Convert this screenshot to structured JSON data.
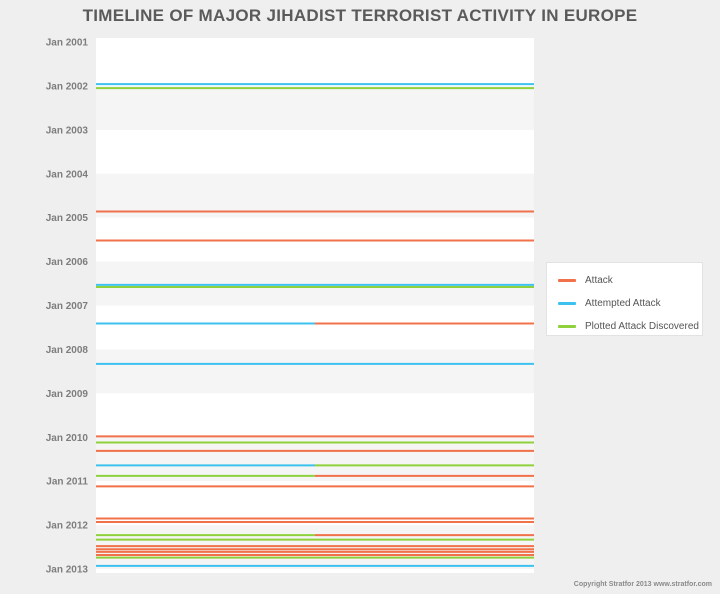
{
  "chart_data": {
    "type": "timeline",
    "title": "TIMELINE OF MAJOR JIHADIST TERRORIST ACTIVITY IN EUROPE",
    "y_ticks": [
      "Jan 2001",
      "Jan 2002",
      "Jan 2003",
      "Jan 2004",
      "Jan 2005",
      "Jan 2006",
      "Jan 2007",
      "Jan 2008",
      "Jan 2009",
      "Jan 2010",
      "Jan 2011",
      "Jan 2012",
      "Jan 2013"
    ],
    "y_range": [
      2001.0,
      2013.0
    ],
    "grid": "alternating bands",
    "legend_position": "right",
    "series": [
      {
        "name": "Attack",
        "color": "#f0714a"
      },
      {
        "name": "Attempted Attack",
        "color": "#3cc2ee"
      },
      {
        "name": "Plotted Attack Discovered",
        "color": "#8fd13c"
      }
    ],
    "events": [
      {
        "date": 2001.96,
        "types": [
          "Attempted Attack"
        ]
      },
      {
        "date": 2002.05,
        "types": [
          "Plotted Attack Discovered"
        ]
      },
      {
        "date": 2004.86,
        "types": [
          "Attack"
        ]
      },
      {
        "date": 2005.52,
        "types": [
          "Attack"
        ]
      },
      {
        "date": 2006.53,
        "types": [
          "Attempted Attack"
        ]
      },
      {
        "date": 2006.58,
        "types": [
          "Plotted Attack Discovered"
        ]
      },
      {
        "date": 2007.41,
        "types": [
          "Attempted Attack",
          "Attack"
        ]
      },
      {
        "date": 2008.33,
        "types": [
          "Attempted Attack"
        ]
      },
      {
        "date": 2009.98,
        "types": [
          "Attack"
        ]
      },
      {
        "date": 2010.12,
        "types": [
          "Plotted Attack Discovered"
        ]
      },
      {
        "date": 2010.31,
        "types": [
          "Attack"
        ]
      },
      {
        "date": 2010.64,
        "types": [
          "Attempted Attack",
          "Plotted Attack Discovered"
        ]
      },
      {
        "date": 2010.88,
        "types": [
          "Plotted Attack Discovered",
          "Attack"
        ]
      },
      {
        "date": 2011.12,
        "types": [
          "Attack"
        ]
      },
      {
        "date": 2011.85,
        "types": [
          "Attack"
        ]
      },
      {
        "date": 2011.93,
        "types": [
          "Attack"
        ]
      },
      {
        "date": 2012.23,
        "types": [
          "Plotted Attack Discovered",
          "Attack"
        ]
      },
      {
        "date": 2012.33,
        "types": [
          "Plotted Attack Discovered"
        ]
      },
      {
        "date": 2012.48,
        "types": [
          "Attack"
        ]
      },
      {
        "date": 2012.55,
        "types": [
          "Attack"
        ]
      },
      {
        "date": 2012.61,
        "types": [
          "Attack"
        ]
      },
      {
        "date": 2012.68,
        "types": [
          "Attack"
        ]
      },
      {
        "date": 2012.74,
        "types": [
          "Plotted Attack Discovered"
        ]
      },
      {
        "date": 2012.93,
        "types": [
          "Attempted Attack"
        ]
      }
    ]
  },
  "legend": {
    "items": [
      {
        "label": "Attack",
        "color": "#f0714a"
      },
      {
        "label": "Attempted Attack",
        "color": "#3cc2ee"
      },
      {
        "label": "Plotted Attack Discovered",
        "color": "#8fd13c"
      }
    ]
  },
  "footer": {
    "copyright": "Copyright Stratfor 2013   www.stratfor.com"
  }
}
